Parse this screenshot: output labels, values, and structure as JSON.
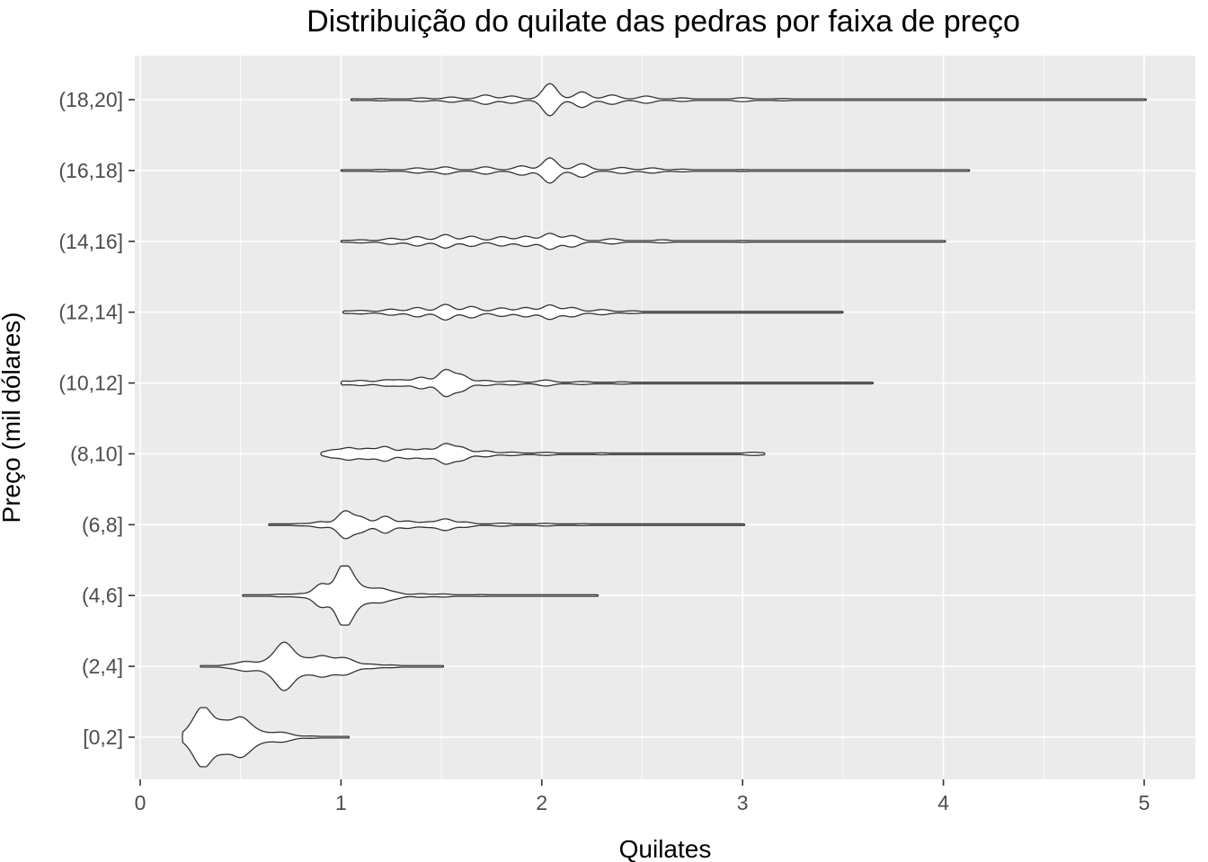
{
  "chart_data": {
    "type": "violin",
    "title": "Distribuição do quilate das pedras por faixa de preço",
    "xlabel": "Quilates",
    "ylabel": "Preço (mil dólares)",
    "xlim": [
      0,
      5.2
    ],
    "x_ticks": [
      "0",
      "1",
      "2",
      "3",
      "4",
      "5"
    ],
    "categories": [
      "[0,2]",
      "(2,4]",
      "(4,6]",
      "(6,8]",
      "(8,10]",
      "(10,12]",
      "(12,14]",
      "(14,16]",
      "(16,18]",
      "(18,20]"
    ],
    "grid": true,
    "background": "#ebebeb",
    "grid_color": "#ffffff",
    "outline_color": "#333333",
    "fill_color": "#ffffff",
    "series": [
      {
        "category": "[0,2]",
        "min": 0.21,
        "max": 1.04,
        "peaks": [
          [
            0.22,
            0.08
          ],
          [
            0.25,
            0.15
          ],
          [
            0.28,
            0.35
          ],
          [
            0.31,
            0.82
          ],
          [
            0.34,
            0.45
          ],
          [
            0.37,
            0.18
          ],
          [
            0.41,
            0.45
          ],
          [
            0.44,
            0.2
          ],
          [
            0.48,
            0.35
          ],
          [
            0.51,
            0.55
          ],
          [
            0.56,
            0.3
          ],
          [
            0.62,
            0.13
          ],
          [
            0.67,
            0.08
          ],
          [
            0.71,
            0.14
          ],
          [
            0.75,
            0.05
          ],
          [
            0.85,
            0.03
          ],
          [
            1.04,
            0.01
          ]
        ]
      },
      {
        "category": "(2,4]",
        "min": 0.3,
        "max": 1.51,
        "peaks": [
          [
            0.3,
            0.01
          ],
          [
            0.45,
            0.06
          ],
          [
            0.52,
            0.18
          ],
          [
            0.58,
            0.1
          ],
          [
            0.65,
            0.28
          ],
          [
            0.71,
            0.9
          ],
          [
            0.76,
            0.45
          ],
          [
            0.83,
            0.28
          ],
          [
            0.9,
            0.38
          ],
          [
            0.95,
            0.2
          ],
          [
            1.01,
            0.3
          ],
          [
            1.06,
            0.15
          ],
          [
            1.15,
            0.08
          ],
          [
            1.25,
            0.04
          ],
          [
            1.51,
            0.01
          ]
        ]
      },
      {
        "category": "(4,6]",
        "min": 0.51,
        "max": 2.28,
        "peaks": [
          [
            0.51,
            0.01
          ],
          [
            0.7,
            0.04
          ],
          [
            0.8,
            0.06
          ],
          [
            0.9,
            0.5
          ],
          [
            0.95,
            0.1
          ],
          [
            1.01,
            1.3
          ],
          [
            1.06,
            0.55
          ],
          [
            1.13,
            0.25
          ],
          [
            1.2,
            0.28
          ],
          [
            1.27,
            0.12
          ],
          [
            1.4,
            0.06
          ],
          [
            1.51,
            0.05
          ],
          [
            1.7,
            0.02
          ],
          [
            2.28,
            0.01
          ]
        ]
      },
      {
        "category": "(6,8]",
        "min": 0.64,
        "max": 3.01,
        "peaks": [
          [
            0.64,
            0.01
          ],
          [
            0.8,
            0.03
          ],
          [
            0.9,
            0.12
          ],
          [
            1.02,
            0.62
          ],
          [
            1.1,
            0.32
          ],
          [
            1.22,
            0.38
          ],
          [
            1.33,
            0.15
          ],
          [
            1.43,
            0.1
          ],
          [
            1.52,
            0.25
          ],
          [
            1.62,
            0.1
          ],
          [
            1.8,
            0.05
          ],
          [
            2.02,
            0.04
          ],
          [
            2.2,
            0.02
          ],
          [
            3.01,
            0.01
          ]
        ]
      },
      {
        "category": "(8,10]",
        "min": 0.9,
        "max": 3.11,
        "peaks": [
          [
            0.9,
            0.02
          ],
          [
            0.96,
            0.15
          ],
          [
            1.04,
            0.26
          ],
          [
            1.13,
            0.22
          ],
          [
            1.22,
            0.32
          ],
          [
            1.33,
            0.2
          ],
          [
            1.42,
            0.2
          ],
          [
            1.52,
            0.45
          ],
          [
            1.6,
            0.28
          ],
          [
            1.72,
            0.12
          ],
          [
            1.85,
            0.06
          ],
          [
            2.02,
            0.05
          ],
          [
            2.3,
            0.02
          ],
          [
            2.7,
            0.01
          ],
          [
            3.05,
            0.05
          ],
          [
            3.11,
            0.01
          ]
        ]
      },
      {
        "category": "(10,12]",
        "min": 1.0,
        "max": 3.65,
        "peaks": [
          [
            1.0,
            0.07
          ],
          [
            1.1,
            0.1
          ],
          [
            1.22,
            0.12
          ],
          [
            1.3,
            0.12
          ],
          [
            1.4,
            0.25
          ],
          [
            1.52,
            0.6
          ],
          [
            1.6,
            0.35
          ],
          [
            1.72,
            0.1
          ],
          [
            1.85,
            0.07
          ],
          [
            2.02,
            0.12
          ],
          [
            2.2,
            0.05
          ],
          [
            2.4,
            0.03
          ],
          [
            3.0,
            0.01
          ],
          [
            3.65,
            0.01
          ]
        ]
      },
      {
        "category": "(12,14]",
        "min": 1.01,
        "max": 3.5,
        "peaks": [
          [
            1.01,
            0.03
          ],
          [
            1.1,
            0.06
          ],
          [
            1.25,
            0.12
          ],
          [
            1.38,
            0.2
          ],
          [
            1.52,
            0.35
          ],
          [
            1.65,
            0.25
          ],
          [
            1.8,
            0.18
          ],
          [
            1.92,
            0.2
          ],
          [
            2.04,
            0.32
          ],
          [
            2.15,
            0.2
          ],
          [
            2.3,
            0.1
          ],
          [
            2.45,
            0.04
          ],
          [
            3.0,
            0.01
          ],
          [
            3.5,
            0.01
          ]
        ]
      },
      {
        "category": "(14,16]",
        "min": 1.0,
        "max": 4.01,
        "peaks": [
          [
            1.0,
            0.02
          ],
          [
            1.1,
            0.05
          ],
          [
            1.25,
            0.12
          ],
          [
            1.38,
            0.2
          ],
          [
            1.52,
            0.3
          ],
          [
            1.65,
            0.22
          ],
          [
            1.8,
            0.2
          ],
          [
            1.92,
            0.22
          ],
          [
            2.04,
            0.36
          ],
          [
            2.15,
            0.25
          ],
          [
            2.35,
            0.1
          ],
          [
            2.6,
            0.05
          ],
          [
            3.0,
            0.02
          ],
          [
            4.01,
            0.01
          ]
        ]
      },
      {
        "category": "(16,18]",
        "min": 1.0,
        "max": 4.13,
        "peaks": [
          [
            1.0,
            0.01
          ],
          [
            1.2,
            0.03
          ],
          [
            1.38,
            0.1
          ],
          [
            1.52,
            0.15
          ],
          [
            1.72,
            0.15
          ],
          [
            1.9,
            0.2
          ],
          [
            2.04,
            0.58
          ],
          [
            2.2,
            0.3
          ],
          [
            2.4,
            0.12
          ],
          [
            2.55,
            0.1
          ],
          [
            2.7,
            0.04
          ],
          [
            3.0,
            0.02
          ],
          [
            4.13,
            0.01
          ]
        ]
      },
      {
        "category": "(18,20]",
        "min": 1.05,
        "max": 5.01,
        "peaks": [
          [
            1.05,
            0.02
          ],
          [
            1.2,
            0.03
          ],
          [
            1.4,
            0.06
          ],
          [
            1.55,
            0.1
          ],
          [
            1.72,
            0.2
          ],
          [
            1.85,
            0.15
          ],
          [
            2.04,
            0.75
          ],
          [
            2.2,
            0.35
          ],
          [
            2.35,
            0.2
          ],
          [
            2.52,
            0.15
          ],
          [
            2.7,
            0.06
          ],
          [
            3.0,
            0.07
          ],
          [
            3.2,
            0.03
          ],
          [
            4.0,
            0.01
          ],
          [
            5.01,
            0.01
          ]
        ]
      }
    ]
  }
}
